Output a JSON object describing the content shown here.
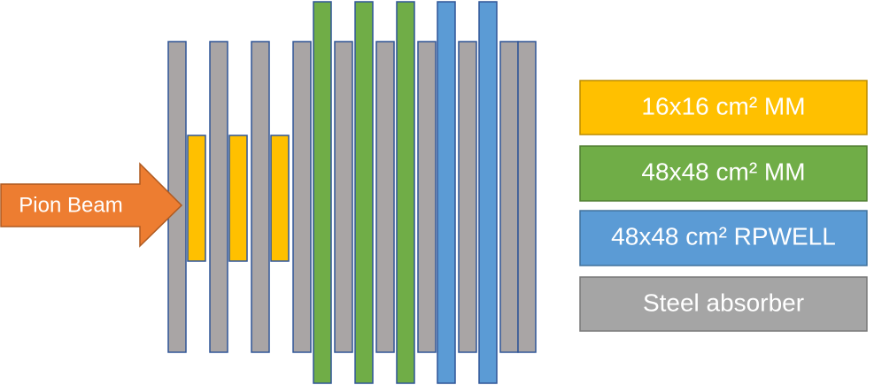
{
  "beam": {
    "label": "Pion Beam"
  },
  "legend": {
    "items": [
      {
        "label": "16x16 cm² MM"
      },
      {
        "label": "48x48 cm² MM"
      },
      {
        "label": "48x48 cm² RPWELL"
      },
      {
        "label": "Steel absorber"
      }
    ]
  }
}
